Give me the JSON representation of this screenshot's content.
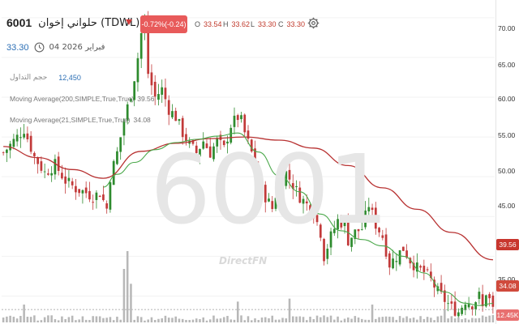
{
  "header": {
    "symbol": "6001",
    "name": "حلواني إخوان  (TDWL)",
    "change": "-0.72%(-0.24)",
    "ohlc": [
      {
        "key": "O",
        "value": "33.54"
      },
      {
        "key": "H",
        "value": "33.62"
      },
      {
        "key": "L",
        "value": "33.30"
      },
      {
        "key": "C",
        "value": "33.30"
      }
    ],
    "last_price": "33.30",
    "date": "04 فبراير 2026"
  },
  "volume_legend": {
    "label": "حجم التداول",
    "value": "12,450"
  },
  "indicators": [
    {
      "label": "Moving Average(200,SIMPLE,True,True)",
      "value": "39.56",
      "color": "#c0392b"
    },
    {
      "label": "Moving Average(21,SIMPLE,True,True)",
      "value": "34.08",
      "color": "#3a9a3a"
    }
  ],
  "watermark": "6001",
  "brand": "DirectFN",
  "axis": {
    "ticks": [
      "70.00",
      "65.00",
      "60.00",
      "55.00",
      "50.00",
      "45.00",
      "40.00",
      "35.00"
    ],
    "ma200_label": "39.56",
    "ma21_label": "34.08",
    "volume_label": "12.45K"
  },
  "chart_data": {
    "type": "candlestick",
    "ylim": [
      32.5,
      71
    ],
    "yticks": [
      70,
      65,
      60,
      55,
      50,
      45,
      40,
      35
    ],
    "close_path": [
      [
        0,
        53.0
      ],
      [
        3,
        54.5
      ],
      [
        6,
        56.0
      ],
      [
        9,
        52.5
      ],
      [
        12,
        50.5
      ],
      [
        15,
        51.5
      ],
      [
        18,
        49.5
      ],
      [
        21,
        48.5
      ],
      [
        24,
        48.0
      ],
      [
        26,
        47.5
      ],
      [
        28,
        48.0
      ],
      [
        30,
        46.0
      ],
      [
        31,
        50.0
      ],
      [
        33,
        53.0
      ],
      [
        35,
        57.0
      ],
      [
        37,
        60.5
      ],
      [
        38,
        62.5
      ],
      [
        39,
        65.0
      ],
      [
        40,
        68.0
      ],
      [
        41,
        69.0
      ],
      [
        42,
        63.0
      ],
      [
        44,
        60.0
      ],
      [
        46,
        61.0
      ],
      [
        48,
        58.5
      ],
      [
        50,
        57.5
      ],
      [
        52,
        55.5
      ],
      [
        54,
        54.0
      ],
      [
        56,
        53.0
      ],
      [
        58,
        54.5
      ],
      [
        60,
        53.0
      ],
      [
        62,
        54.5
      ],
      [
        64,
        53.5
      ],
      [
        66,
        56.5
      ],
      [
        68,
        57.5
      ],
      [
        69,
        57.0
      ],
      [
        70,
        55.5
      ],
      [
        72,
        53.0
      ],
      [
        74,
        49.5
      ],
      [
        76,
        47.5
      ],
      [
        78,
        46.0
      ],
      [
        80,
        49.5
      ],
      [
        82,
        50.5
      ],
      [
        84,
        49.0
      ],
      [
        86,
        47.5
      ],
      [
        88,
        46.5
      ],
      [
        90,
        45.5
      ],
      [
        92,
        43.0
      ],
      [
        93,
        40.0
      ],
      [
        95,
        42.5
      ],
      [
        97,
        44.5
      ],
      [
        99,
        44.0
      ],
      [
        100,
        42.0
      ],
      [
        102,
        43.0
      ],
      [
        104,
        43.5
      ],
      [
        106,
        46.5
      ],
      [
        108,
        44.0
      ],
      [
        110,
        42.5
      ],
      [
        112,
        39.0
      ],
      [
        114,
        40.0
      ],
      [
        116,
        41.0
      ],
      [
        118,
        39.5
      ],
      [
        120,
        38.5
      ],
      [
        122,
        38.0
      ],
      [
        124,
        37.0
      ],
      [
        126,
        35.5
      ],
      [
        128,
        34.5
      ],
      [
        130,
        33.5
      ],
      [
        132,
        33.0
      ],
      [
        134,
        34.5
      ],
      [
        136,
        34.0
      ],
      [
        138,
        35.0
      ],
      [
        139,
        33.5
      ],
      [
        140,
        35.5
      ],
      [
        141,
        34.5
      ],
      [
        142,
        33.3
      ]
    ],
    "series": [
      {
        "name": "Moving Average(200,SIMPLE,True,True)",
        "points": [
          [
            0,
            53.8
          ],
          [
            10,
            52.4
          ],
          [
            20,
            50.9
          ],
          [
            29,
            49.8
          ],
          [
            40,
            53.2
          ],
          [
            50,
            54.2
          ],
          [
            60,
            54.8
          ],
          [
            70,
            55.0
          ],
          [
            80,
            54.6
          ],
          [
            90,
            53.6
          ],
          [
            100,
            51.4
          ],
          [
            110,
            48.6
          ],
          [
            120,
            45.9
          ],
          [
            130,
            43.0
          ],
          [
            142,
            39.56
          ]
        ]
      },
      {
        "name": "Moving Average(21,SIMPLE,True,True)",
        "points": [
          [
            29,
            48.7
          ],
          [
            33,
            50.3
          ],
          [
            38,
            51.8
          ],
          [
            44,
            53.4
          ],
          [
            50,
            54.3
          ],
          [
            56,
            54.7
          ],
          [
            62,
            55.1
          ],
          [
            68,
            55.5
          ],
          [
            74,
            53.1
          ],
          [
            80,
            50.1
          ],
          [
            86,
            48.1
          ],
          [
            92,
            45.3
          ],
          [
            98,
            43.2
          ],
          [
            104,
            42.1
          ],
          [
            110,
            41.3
          ],
          [
            116,
            40.0
          ],
          [
            122,
            37.9
          ],
          [
            128,
            35.5
          ],
          [
            134,
            34.1
          ],
          [
            138,
            33.8
          ],
          [
            142,
            34.08
          ]
        ]
      }
    ],
    "volume": {
      "max_volume": 120000,
      "spikes": [
        [
          6,
          30000
        ],
        [
          35,
          90000
        ],
        [
          36,
          120000
        ],
        [
          37,
          65000
        ],
        [
          68,
          35000
        ],
        [
          83,
          40000
        ],
        [
          107,
          30000
        ],
        [
          128,
          22000
        ]
      ],
      "last_value": 12450
    }
  },
  "colors": {
    "up": "#2e8b2e",
    "down": "#c23a3a",
    "ma200": "#b83232",
    "ma21": "#4aa84a",
    "volume": "#b8b8b8"
  }
}
